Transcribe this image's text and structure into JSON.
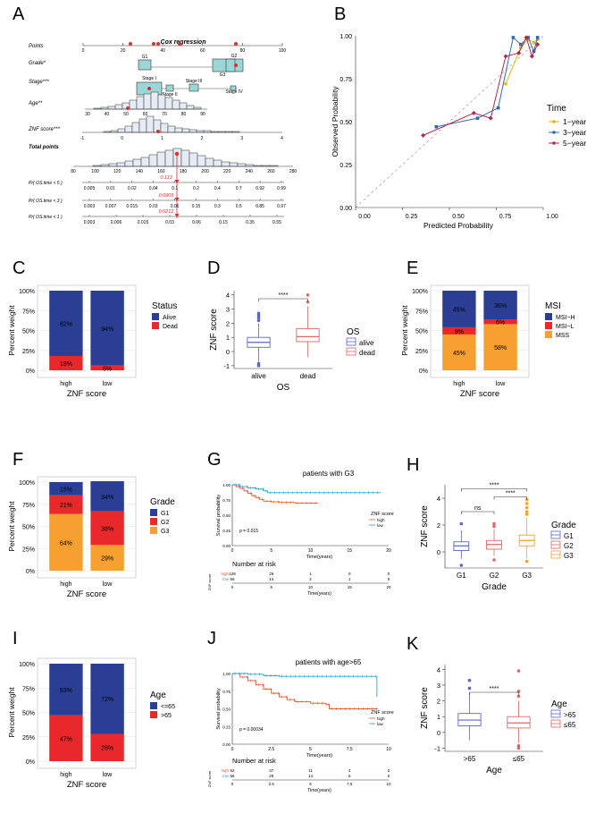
{
  "panel_letters": [
    "A",
    "B",
    "C",
    "D",
    "E",
    "F",
    "G",
    "H",
    "I",
    "J",
    "K"
  ],
  "chart_data": [
    {
      "id": "A",
      "type": "table",
      "title": "Cox regression",
      "rows": [
        {
          "label": "Points",
          "bold": false,
          "ticks": [
            "0",
            "20",
            "40",
            "60",
            "80",
            "100"
          ],
          "tick_values": [
            0,
            20,
            40,
            60,
            80,
            100
          ]
        },
        {
          "label": "Grade*",
          "levels": [
            "G1",
            "G2",
            "G3"
          ]
        },
        {
          "label": "Stage***",
          "levels": [
            "Stage I",
            "Stage II",
            "Stage III",
            "Stage IV"
          ]
        },
        {
          "label": "Age**",
          "ticks": [
            "30",
            "40",
            "50",
            "60",
            "70",
            "80",
            "90"
          ]
        },
        {
          "label": "ZNF score***",
          "ticks": [
            "-1",
            "0",
            "1",
            "2",
            "3",
            "4"
          ]
        },
        {
          "label": "Total points",
          "bold": true,
          "ticks": [
            "80",
            "100",
            "120",
            "140",
            "160",
            "180",
            "200",
            "220",
            "240",
            "260",
            "280"
          ]
        },
        {
          "label": "Pr( OS.time < 5 )",
          "ticks": [
            "0.005",
            "0.01",
            "0.02",
            "0.04",
            "0.1",
            "0.2",
            "0.4",
            "0.7",
            "0.92",
            "0.99"
          ],
          "highlight": "0.113"
        },
        {
          "label": "Pr( OS.time < 3 )",
          "ticks": [
            "0.003",
            "0.007",
            "0.015",
            "0.03",
            "0.06",
            "0.15",
            "0.3",
            "0.5",
            "0.85",
            "0.97"
          ],
          "highlight": "0.0909"
        },
        {
          "label": "Pr( OS.time < 1 )",
          "ticks": [
            "0.003",
            "0.006",
            "0.015",
            "0.03",
            "0.06",
            "0.15",
            "0.35",
            "0.55"
          ],
          "highlight": "0.0212"
        }
      ]
    },
    {
      "id": "B",
      "type": "line",
      "xlabel": "Predicted Probability",
      "ylabel": "Observed Probability",
      "xlim": [
        0,
        1
      ],
      "ylim": [
        0,
        1
      ],
      "xticks": [
        "0.00",
        "0.25",
        "0.50",
        "0.75",
        "1.00"
      ],
      "yticks": [
        "0.00",
        "0.25",
        "0.50",
        "0.75",
        "1.00"
      ],
      "legend_title": "Time",
      "series": [
        {
          "name": "1−year",
          "color": "#E7B800",
          "x": [
            0.8,
            0.88,
            0.92,
            0.95,
            0.97
          ],
          "y": [
            0.72,
            0.93,
            0.98,
            0.96,
            0.98
          ]
        },
        {
          "name": "3−year",
          "color": "#2E6BB0",
          "x": [
            0.43,
            0.65,
            0.76,
            0.84,
            0.88,
            0.92,
            0.95,
            0.97
          ],
          "y": [
            0.47,
            0.52,
            0.58,
            0.99,
            0.95,
            0.99,
            0.91,
            0.99
          ]
        },
        {
          "name": "5−year",
          "color": "#B5284A",
          "x": [
            0.36,
            0.63,
            0.72,
            0.8,
            0.87,
            0.91,
            0.94,
            0.97
          ],
          "y": [
            0.42,
            0.55,
            0.52,
            0.88,
            0.9,
            0.99,
            0.88,
            0.95
          ]
        }
      ]
    },
    {
      "id": "C",
      "type": "bar",
      "xlabel": "ZNF score",
      "ylabel": "Percent weight",
      "categories": [
        "high",
        "low"
      ],
      "yticks": [
        "0%",
        "25%",
        "50%",
        "75%",
        "100%"
      ],
      "legend_title": "Status",
      "series": [
        {
          "name": "Dead",
          "color": "#E8282A",
          "values": [
            18,
            6
          ],
          "labels": [
            "18%",
            "6%"
          ]
        },
        {
          "name": "Alive",
          "color": "#2A3E94",
          "values": [
            82,
            94
          ],
          "labels": [
            "82%",
            "94%"
          ]
        }
      ]
    },
    {
      "id": "D",
      "type": "box",
      "xlabel": "OS",
      "ylabel": "ZNF score",
      "categories": [
        "alive",
        "dead"
      ],
      "ylim": [
        -1.2,
        4.3
      ],
      "yticks": [
        "-1",
        "0",
        "1",
        "2",
        "3",
        "4"
      ],
      "legend_title": "OS",
      "significance": "****",
      "boxes": [
        {
          "name": "alive",
          "color": "#5B64C8",
          "min": -0.7,
          "q1": 0.3,
          "median": 0.65,
          "q3": 1.0,
          "max": 2.0,
          "outliers": [
            2.2,
            2.4,
            2.55,
            2.7,
            -0.85,
            -1.0
          ]
        },
        {
          "name": "dead",
          "color": "#E06666",
          "min": -0.4,
          "q1": 0.7,
          "median": 1.05,
          "q3": 1.62,
          "max": 3.2,
          "outliers": [
            3.5,
            4.0
          ]
        }
      ]
    },
    {
      "id": "E",
      "type": "bar",
      "xlabel": "ZNF score",
      "ylabel": "Percent weight",
      "categories": [
        "high",
        "low"
      ],
      "yticks": [
        "0%",
        "25%",
        "50%",
        "75%",
        "100%"
      ],
      "legend_title": "MSI",
      "series": [
        {
          "name": "MSS",
          "color": "#F6A030",
          "values": [
            45,
            58
          ],
          "labels": [
            "45%",
            "58%"
          ]
        },
        {
          "name": "MSI−L",
          "color": "#E8282A",
          "values": [
            9,
            6
          ],
          "labels": [
            "9%",
            "6%"
          ]
        },
        {
          "name": "MSI−H",
          "color": "#2A3E94",
          "values": [
            46,
            36
          ],
          "labels": [
            "46%",
            "36%"
          ]
        }
      ]
    },
    {
      "id": "F",
      "type": "bar",
      "xlabel": "ZNF score",
      "ylabel": "Percent weight",
      "categories": [
        "high",
        "low"
      ],
      "yticks": [
        "0%",
        "25%",
        "50%",
        "75%",
        "100%"
      ],
      "legend_title": "Grade",
      "series": [
        {
          "name": "G3",
          "color": "#F6A030",
          "values": [
            64,
            29
          ],
          "labels": [
            "64%",
            "29%"
          ]
        },
        {
          "name": "G2",
          "color": "#E8282A",
          "values": [
            21,
            38
          ],
          "labels": [
            "21%",
            "38%"
          ]
        },
        {
          "name": "G1",
          "color": "#2A3E94",
          "values": [
            15,
            34
          ],
          "labels": [
            "15%",
            "34%"
          ]
        }
      ]
    },
    {
      "id": "G",
      "type": "line",
      "title": "patients with G3",
      "xlabel": "Time(years)",
      "ylabel": "Survival probability",
      "xlim": [
        0,
        20
      ],
      "ylim": [
        0,
        1
      ],
      "xticks": [
        "0",
        "5",
        "10",
        "15",
        "20"
      ],
      "yticks": [
        "0.00",
        "0.25",
        "0.50",
        "0.75",
        "1.00"
      ],
      "pvalue": "p = 0.015",
      "legend_title": "ZNF score",
      "series": [
        {
          "name": "high",
          "color": "#E8552A",
          "x": [
            0,
            0.5,
            1.0,
            1.5,
            2.0,
            2.5,
            3.0,
            3.5,
            4.0,
            5.0,
            6.0,
            8.0,
            11.0
          ],
          "y": [
            1.0,
            0.97,
            0.94,
            0.9,
            0.86,
            0.82,
            0.79,
            0.76,
            0.73,
            0.72,
            0.71,
            0.7,
            0.7
          ]
        },
        {
          "name": "low",
          "color": "#2A9FD6",
          "x": [
            0,
            1.0,
            2.0,
            3.0,
            4.0,
            4.5,
            19.0
          ],
          "y": [
            1.0,
            0.97,
            0.95,
            0.93,
            0.9,
            0.87,
            0.87
          ]
        }
      ],
      "risk_table": {
        "title": "Number at risk",
        "label": "ZNF score",
        "rows": [
          {
            "name": "high",
            "color": "#E8552A",
            "values": [
              "128",
              "25",
              "1",
              "0",
              "0"
            ]
          },
          {
            "name": "low",
            "color": "#2A9FD6",
            "values": [
              "56",
              "14",
              "2",
              "1",
              "0"
            ]
          }
        ]
      }
    },
    {
      "id": "H",
      "type": "box",
      "xlabel": "Grade",
      "ylabel": "ZNF score",
      "categories": [
        "G1",
        "G2",
        "G3"
      ],
      "ylim": [
        -1.2,
        5.0
      ],
      "yticks": [
        "0",
        "2",
        "4"
      ],
      "legend_title": "Grade",
      "significance": [
        {
          "from": 0,
          "to": 1,
          "label": "ns",
          "y": 3.0
        },
        {
          "from": 1,
          "to": 2,
          "label": "****",
          "y": 4.1
        },
        {
          "from": 0,
          "to": 2,
          "label": "****",
          "y": 4.7
        }
      ],
      "boxes": [
        {
          "name": "G1",
          "color": "#5B64C8",
          "min": -0.5,
          "q1": 0.1,
          "median": 0.45,
          "q3": 0.75,
          "max": 1.6,
          "outliers": [
            2.1,
            -1.0
          ]
        },
        {
          "name": "G2",
          "color": "#E06666",
          "min": -0.3,
          "q1": 0.2,
          "median": 0.55,
          "q3": 0.85,
          "max": 1.7,
          "outliers": [
            1.9,
            2.1,
            -0.6
          ]
        },
        {
          "name": "G3",
          "color": "#F6A030",
          "min": -0.5,
          "q1": 0.45,
          "median": 0.85,
          "q3": 1.25,
          "max": 2.6,
          "outliers": [
            2.8,
            3.0,
            3.3,
            3.6,
            3.9,
            -0.7
          ]
        }
      ]
    },
    {
      "id": "I",
      "type": "bar",
      "xlabel": "ZNF score",
      "ylabel": "Percent weight",
      "categories": [
        "high",
        "low"
      ],
      "yticks": [
        "0%",
        "25%",
        "50%",
        "75%",
        "100%"
      ],
      "legend_title": "Age",
      "series": [
        {
          "name": ">65",
          "color": "#E8282A",
          "values": [
            47,
            28
          ],
          "labels": [
            "47%",
            "28%"
          ]
        },
        {
          "name": "<=65",
          "color": "#2A3E94",
          "values": [
            53,
            72
          ],
          "labels": [
            "53%",
            "72%"
          ]
        }
      ]
    },
    {
      "id": "J",
      "type": "line",
      "title": "patients with age>65",
      "xlabel": "Time(years)",
      "ylabel": "Survival probability",
      "xlim": [
        0,
        10
      ],
      "ylim": [
        0,
        1
      ],
      "xticks": [
        "0",
        "2.5",
        "5",
        "7.5",
        "10"
      ],
      "yticks": [
        "0.00",
        "0.25",
        "0.50",
        "0.75",
        "1.00"
      ],
      "pvalue": "p = 0.00034",
      "legend_title": "ZNF score",
      "series": [
        {
          "name": "high",
          "color": "#E8552A",
          "x": [
            0,
            0.5,
            1.0,
            1.5,
            2.0,
            2.5,
            3.0,
            3.5,
            4.0,
            5.0,
            6.0,
            6.2,
            9.3
          ],
          "y": [
            1.0,
            0.95,
            0.9,
            0.84,
            0.78,
            0.72,
            0.67,
            0.63,
            0.6,
            0.58,
            0.56,
            0.5,
            0.5
          ]
        },
        {
          "name": "low",
          "color": "#2A9FD6",
          "x": [
            0,
            1.0,
            2.0,
            3.0,
            9.2,
            9.25
          ],
          "y": [
            1.0,
            0.99,
            0.97,
            0.96,
            0.96,
            0.67
          ]
        }
      ],
      "risk_table": {
        "title": "Number at risk",
        "label": "ZNF score",
        "rows": [
          {
            "name": "high",
            "color": "#E8552A",
            "values": [
              "92",
              "37",
              "11",
              "4",
              "2"
            ]
          },
          {
            "name": "low",
            "color": "#2A9FD6",
            "values": [
              "56",
              "29",
              "14",
              "6",
              "0"
            ]
          }
        ]
      }
    },
    {
      "id": "K",
      "type": "box",
      "xlabel": "Age",
      "ylabel": "ZNF score",
      "categories": [
        ">65",
        "≤65"
      ],
      "ylim": [
        -1.2,
        4.3
      ],
      "yticks": [
        "-1",
        "0",
        "1",
        "2",
        "3",
        "4"
      ],
      "legend_title": "Age",
      "significance": "****",
      "boxes": [
        {
          "name": ">65",
          "color": "#5B64C8",
          "min": -0.5,
          "q1": 0.42,
          "median": 0.78,
          "q3": 1.2,
          "max": 2.5,
          "outliers": [
            2.8,
            3.3
          ]
        },
        {
          "name": "≤65",
          "color": "#E06666",
          "min": -0.7,
          "q1": 0.28,
          "median": 0.6,
          "q3": 1.0,
          "max": 2.0,
          "outliers": [
            2.3,
            2.6,
            3.9,
            -0.85,
            -1.0
          ]
        }
      ]
    }
  ]
}
